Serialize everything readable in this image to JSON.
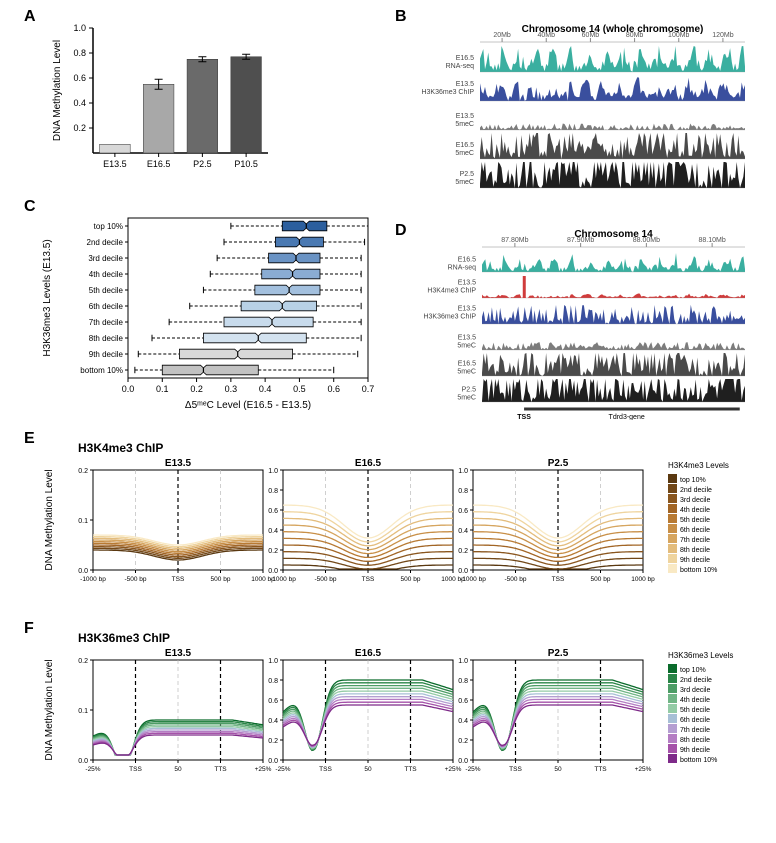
{
  "panelA": {
    "label": "A",
    "ylabel": "DNA Methylation Level",
    "ylim": [
      0,
      1.0
    ],
    "yticks": [
      0.2,
      0.4,
      0.6,
      0.8,
      1.0
    ],
    "categories": [
      "E13.5",
      "E16.5",
      "P2.5",
      "P10.5"
    ],
    "values": [
      0.07,
      0.55,
      0.75,
      0.77
    ],
    "errors": [
      0,
      0.04,
      0.02,
      0.02
    ],
    "bar_colors": [
      "#d8d8d8",
      "#a8a8a8",
      "#6a6a6a",
      "#4f4f4f"
    ],
    "label_fontsize": 10
  },
  "panelB": {
    "label": "B",
    "title": "Chromosome 14 (whole chromosome)",
    "xticks": [
      "20Mb",
      "40Mb",
      "60Mb",
      "80Mb",
      "100Mb",
      "120Mb"
    ],
    "tracks": [
      {
        "name": "E16.5 RNA-seq",
        "color": "#3aafa0"
      },
      {
        "name": "E13.5 H3K36me3 ChIP",
        "color": "#3a4f9e"
      },
      {
        "name": "E13.5 5meC",
        "color": "#7c7c7c"
      },
      {
        "name": "E16.5 5meC",
        "color": "#4a4a4a"
      },
      {
        "name": "P2.5 5meC",
        "color": "#1f1f1f"
      }
    ],
    "track_heights": [
      0.7,
      0.6,
      0.2,
      0.75,
      0.95
    ]
  },
  "panelC": {
    "label": "C",
    "ylabel": "H3K36me3 Levels (E13.5)",
    "xlabel": "Δ5ᵐᵉC Level (E16.5 - E13.5)",
    "xlim": [
      0.0,
      0.7
    ],
    "xticks": [
      "0.0",
      "0.1",
      "0.2",
      "0.3",
      "0.4",
      "0.5",
      "0.6",
      "0.7"
    ],
    "categories": [
      "top 10%",
      "2nd decile",
      "3rd decile",
      "4th decile",
      "5th decile",
      "6th decile",
      "7th decile",
      "8th decile",
      "9th decile",
      "bottom 10%"
    ],
    "boxes": [
      {
        "q1": 0.45,
        "med": 0.52,
        "q3": 0.58,
        "wl": 0.3,
        "wh": 0.7,
        "color": "#2c5f9e"
      },
      {
        "q1": 0.43,
        "med": 0.5,
        "q3": 0.57,
        "wl": 0.28,
        "wh": 0.69,
        "color": "#4a79b2"
      },
      {
        "q1": 0.41,
        "med": 0.49,
        "q3": 0.56,
        "wl": 0.26,
        "wh": 0.68,
        "color": "#6a93c4"
      },
      {
        "q1": 0.39,
        "med": 0.48,
        "q3": 0.56,
        "wl": 0.24,
        "wh": 0.68,
        "color": "#8aacd3"
      },
      {
        "q1": 0.37,
        "med": 0.47,
        "q3": 0.56,
        "wl": 0.22,
        "wh": 0.68,
        "color": "#a3c0de"
      },
      {
        "q1": 0.33,
        "med": 0.45,
        "q3": 0.55,
        "wl": 0.18,
        "wh": 0.68,
        "color": "#b8d1e6"
      },
      {
        "q1": 0.28,
        "med": 0.42,
        "q3": 0.54,
        "wl": 0.12,
        "wh": 0.68,
        "color": "#c8dbec"
      },
      {
        "q1": 0.22,
        "med": 0.38,
        "q3": 0.52,
        "wl": 0.07,
        "wh": 0.68,
        "color": "#d3e2ef"
      },
      {
        "q1": 0.15,
        "med": 0.32,
        "q3": 0.48,
        "wl": 0.03,
        "wh": 0.67,
        "color": "#d9d9d9"
      },
      {
        "q1": 0.1,
        "med": 0.22,
        "q3": 0.38,
        "wl": 0.02,
        "wh": 0.6,
        "color": "#c2c2c2"
      }
    ]
  },
  "panelD": {
    "label": "D",
    "title": "Chromosome 14",
    "xticks": [
      "87.80Mb",
      "87.90Mb",
      "88.00Mb",
      "88.10Mb"
    ],
    "gene_label": "Tdrd3-gene",
    "tss_label": "TSS",
    "tracks": [
      {
        "name": "E16.5 RNA-seq",
        "color": "#3aafa0"
      },
      {
        "name": "E13.5 H3K4me3 ChIP",
        "color": "#d03c3c"
      },
      {
        "name": "E13.5 H3K36me3 ChIP",
        "color": "#3a4f9e"
      },
      {
        "name": "E13.5 5meC",
        "color": "#7c7c7c"
      },
      {
        "name": "E16.5 5meC",
        "color": "#4a4a4a"
      },
      {
        "name": "P2.5 5meC",
        "color": "#1f1f1f"
      }
    ]
  },
  "panelE": {
    "label": "E",
    "title": "H3K4me3 ChIP",
    "ylabel": "DNA Methylation Level",
    "sub_titles": [
      "E13.5",
      "E16.5",
      "P2.5"
    ],
    "sub_ylim": [
      [
        0,
        0.2
      ],
      [
        0,
        1.0
      ],
      [
        0,
        1.0
      ]
    ],
    "xticks": [
      "-1000 bp",
      "-500 bp",
      "TSS",
      "500 bp",
      "1000 bp"
    ],
    "legend_title": "H3K4me3 Levels",
    "deciles": [
      "top 10%",
      "2nd decile",
      "3rd decile",
      "4th decile",
      "5th decile",
      "6th decile",
      "7th decile",
      "8th decile",
      "9th decile",
      "bottom 10%"
    ],
    "colors": [
      "#5a3810",
      "#724717",
      "#8a561e",
      "#a26525",
      "#b87a33",
      "#c88f47",
      "#d6a55f",
      "#e3bc7c",
      "#efd49e",
      "#f9e9c4"
    ]
  },
  "panelF": {
    "label": "F",
    "title": "H3K36me3 ChIP",
    "ylabel": "DNA Methylation Level",
    "sub_titles": [
      "E13.5",
      "E16.5",
      "P2.5"
    ],
    "sub_ylim": [
      [
        0,
        0.2
      ],
      [
        0,
        1.0
      ],
      [
        0,
        1.0
      ]
    ],
    "xticks": [
      "-25%",
      "TSS",
      "50",
      "TTS",
      "+25%"
    ],
    "legend_title": "H3K36me3 Levels",
    "deciles": [
      "top 10%",
      "2nd decile",
      "3rd decile",
      "4th decile",
      "5th decile",
      "6th decile",
      "7th decile",
      "8th decile",
      "9th decile",
      "bottom 10%"
    ],
    "colors": [
      "#0a6b2b",
      "#2a8547",
      "#4d9d66",
      "#71b586",
      "#94cba6",
      "#a7bfd6",
      "#b49ed1",
      "#b47dc3",
      "#a552a9",
      "#7e2a89"
    ]
  }
}
